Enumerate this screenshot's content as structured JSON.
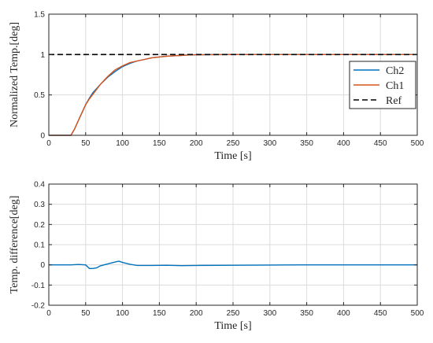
{
  "chart_data": [
    {
      "type": "line",
      "xlabel": "Time [s]",
      "ylabel": "Normalized Temp.[deg]",
      "xlim": [
        0,
        500
      ],
      "ylim": [
        0,
        1.5
      ],
      "xticks": [
        0,
        50,
        100,
        150,
        200,
        250,
        300,
        350,
        400,
        450,
        500
      ],
      "yticks": [
        0,
        0.5,
        1,
        1.5
      ],
      "xtick_labels": [
        "0",
        "50",
        "100",
        "150",
        "200",
        "250",
        "300",
        "350",
        "400",
        "450",
        "500"
      ],
      "ytick_labels": [
        "0",
        "0.5",
        "1",
        "1.5"
      ],
      "grid": true,
      "legend": "right",
      "series": [
        {
          "name": "Ch2",
          "color": "#0072BD",
          "style": "solid",
          "x": [
            0,
            30,
            35,
            40,
            45,
            50,
            55,
            60,
            70,
            80,
            90,
            100,
            110,
            120,
            130,
            140,
            150,
            160,
            170,
            180,
            190,
            200,
            220,
            250,
            300,
            400,
            500
          ],
          "y": [
            0,
            0,
            0.08,
            0.18,
            0.28,
            0.38,
            0.46,
            0.53,
            0.63,
            0.72,
            0.79,
            0.85,
            0.89,
            0.92,
            0.94,
            0.96,
            0.97,
            0.98,
            0.985,
            0.99,
            0.995,
            0.997,
            0.999,
            1.0,
            1.0,
            1.0,
            1.0
          ]
        },
        {
          "name": "Ch1",
          "color": "#D95319",
          "style": "solid",
          "x": [
            0,
            30,
            35,
            40,
            45,
            50,
            55,
            60,
            70,
            80,
            90,
            100,
            110,
            120,
            130,
            140,
            150,
            160,
            170,
            180,
            190,
            200,
            220,
            250,
            300,
            400,
            500
          ],
          "y": [
            0,
            0,
            0.08,
            0.18,
            0.28,
            0.38,
            0.45,
            0.51,
            0.63,
            0.73,
            0.81,
            0.86,
            0.9,
            0.92,
            0.94,
            0.96,
            0.97,
            0.98,
            0.985,
            0.99,
            0.995,
            0.997,
            0.999,
            1.0,
            1.0,
            1.0,
            1.0
          ]
        },
        {
          "name": "Ref",
          "color": "#000000",
          "style": "dashed",
          "x": [
            0,
            500
          ],
          "y": [
            1,
            1
          ]
        }
      ]
    },
    {
      "type": "line",
      "xlabel": "Time [s]",
      "ylabel": "Temp. difference[deg]",
      "xlim": [
        0,
        500
      ],
      "ylim": [
        -0.2,
        0.4
      ],
      "xticks": [
        0,
        50,
        100,
        150,
        200,
        250,
        300,
        350,
        400,
        450,
        500
      ],
      "yticks": [
        -0.2,
        -0.1,
        0,
        0.1,
        0.2,
        0.3,
        0.4
      ],
      "xtick_labels": [
        "0",
        "50",
        "100",
        "150",
        "200",
        "250",
        "300",
        "350",
        "400",
        "450",
        "500"
      ],
      "ytick_labels": [
        "-0.2",
        "-0.1",
        "0",
        "0.1",
        "0.2",
        "0.3",
        "0.4"
      ],
      "grid": true,
      "series": [
        {
          "color": "#0072BD",
          "style": "solid",
          "x": [
            0,
            30,
            40,
            50,
            55,
            60,
            65,
            70,
            80,
            90,
            95,
            100,
            110,
            120,
            140,
            160,
            180,
            200,
            250,
            300,
            350,
            400,
            450,
            500
          ],
          "y": [
            0,
            0,
            0.002,
            0,
            -0.018,
            -0.018,
            -0.015,
            -0.005,
            0.005,
            0.014,
            0.018,
            0.012,
            0.003,
            -0.003,
            -0.003,
            -0.002,
            -0.004,
            -0.003,
            -0.002,
            -0.001,
            0,
            0,
            0,
            0
          ]
        }
      ]
    }
  ]
}
